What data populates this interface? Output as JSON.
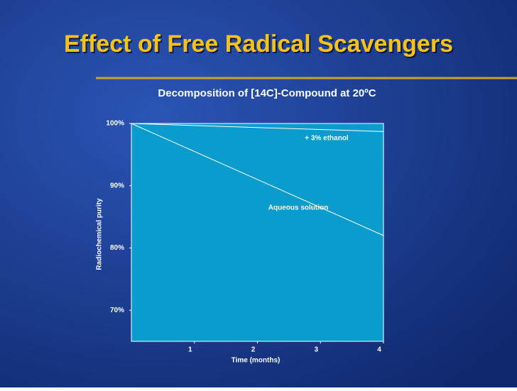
{
  "slide_title": "Effect of Free Radical Scavengers",
  "chart_data": {
    "type": "line",
    "title": "Decomposition of [14C]-Compound at 20ºC",
    "x_label": "Time (months)",
    "y_label": "Radiochemical purity",
    "x": [
      0,
      4
    ],
    "series": [
      {
        "name": "+ 3% ethanol",
        "color": "#ffffff",
        "values": [
          100,
          98.7
        ]
      },
      {
        "name": "Aqueous solution",
        "color": "#ffffff",
        "values": [
          100,
          82
        ]
      }
    ],
    "xlim": [
      0,
      4
    ],
    "xticks": [
      1,
      2,
      3,
      4
    ],
    "ylim": [
      65,
      100
    ],
    "yticks": [
      {
        "value": 70,
        "label": "70%"
      },
      {
        "value": 80,
        "label": "80%"
      },
      {
        "value": 90,
        "label": "90%"
      },
      {
        "value": 100,
        "label": "100%"
      }
    ],
    "plot_color": "#0a9ccc",
    "grid": false
  }
}
